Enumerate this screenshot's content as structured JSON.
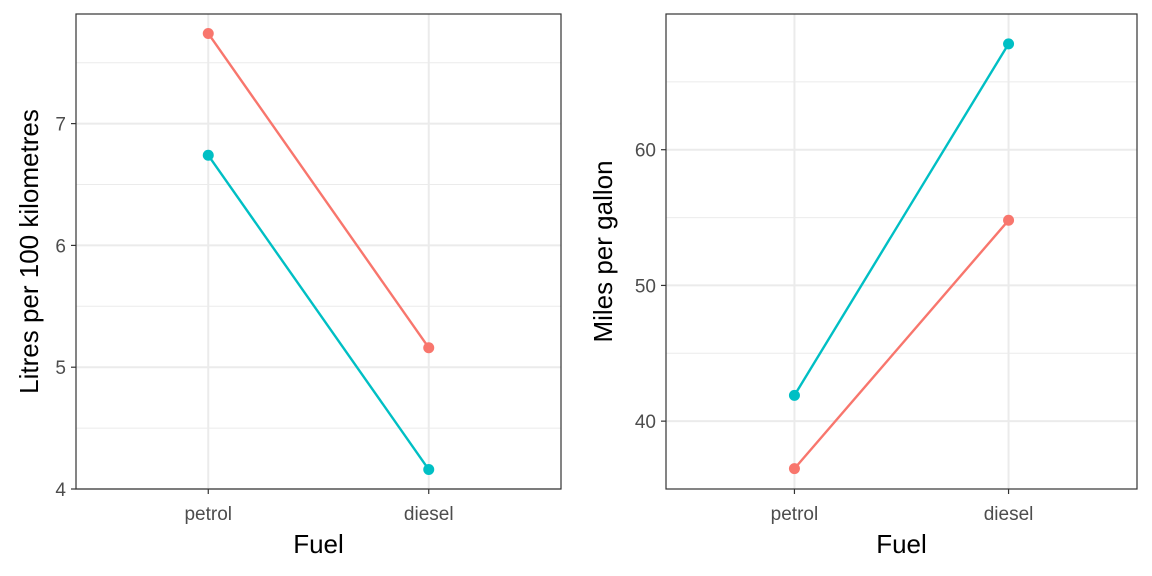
{
  "colors": {
    "series_red": "#F8766D",
    "series_teal": "#00BFC4",
    "grid": "#EBEBEB",
    "border": "#333333",
    "tick_text": "#4D4D4D"
  },
  "chart_data": [
    {
      "type": "line",
      "categories": [
        "petrol",
        "diesel"
      ],
      "xlabel": "Fuel",
      "ylabel": "Litres per 100 kilometres",
      "ylim": [
        4,
        7.9
      ],
      "yticks": [
        "4",
        "5",
        "6",
        "7"
      ],
      "grid": true,
      "legend": "none",
      "series": [
        {
          "color": "#F8766D",
          "values": [
            7.74,
            5.16
          ]
        },
        {
          "color": "#00BFC4",
          "values": [
            6.74,
            4.16
          ]
        }
      ]
    },
    {
      "type": "line",
      "categories": [
        "petrol",
        "diesel"
      ],
      "xlabel": "Fuel",
      "ylabel": "Miles per gallon",
      "ylim": [
        35,
        70
      ],
      "yticks": [
        "40",
        "50",
        "60"
      ],
      "grid": true,
      "legend": "none",
      "series": [
        {
          "color": "#F8766D",
          "values": [
            36.5,
            54.8
          ]
        },
        {
          "color": "#00BFC4",
          "values": [
            41.9,
            67.8
          ]
        }
      ]
    }
  ]
}
